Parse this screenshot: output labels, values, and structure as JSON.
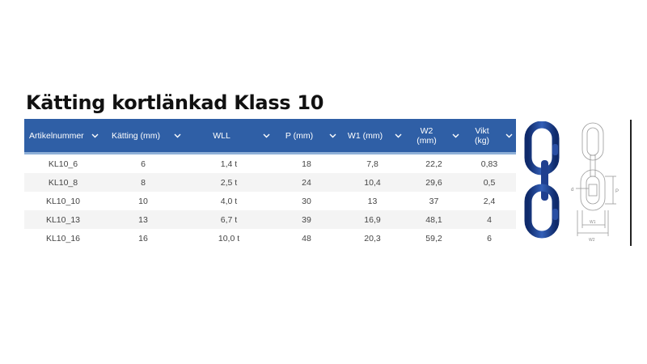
{
  "page": {
    "title": "Kätting kortlänkad Klass 10"
  },
  "table": {
    "headers": [
      "Artikelnummer",
      "Kätting (mm)",
      "WLL",
      "P (mm)",
      "W1 (mm)",
      "W2\n(mm)",
      "Vikt\n(kg)"
    ],
    "rows": [
      [
        "KL10_6",
        "6",
        "1,4 t",
        "18",
        "7,8",
        "22,2",
        "0,83"
      ],
      [
        "KL10_8",
        "8",
        "2,5 t",
        "24",
        "10,4",
        "29,6",
        "0,5"
      ],
      [
        "KL10_10",
        "10",
        "4,0 t",
        "30",
        "13",
        "37",
        "2,4"
      ],
      [
        "KL10_13",
        "13",
        "6,7 t",
        "39",
        "16,9",
        "48,1",
        "4"
      ],
      [
        "KL10_16",
        "16",
        "10,0 t",
        "48",
        "20,3",
        "59,2",
        "6"
      ]
    ]
  },
  "colors": {
    "header_bg": "#2f5fa6",
    "chain": "#1f3f8f"
  },
  "icons": {
    "sort": "chevron-down-icon"
  },
  "diagram": {
    "label_d": "d",
    "label_p": "P",
    "label_w1": "W1",
    "label_w2": "W2"
  }
}
